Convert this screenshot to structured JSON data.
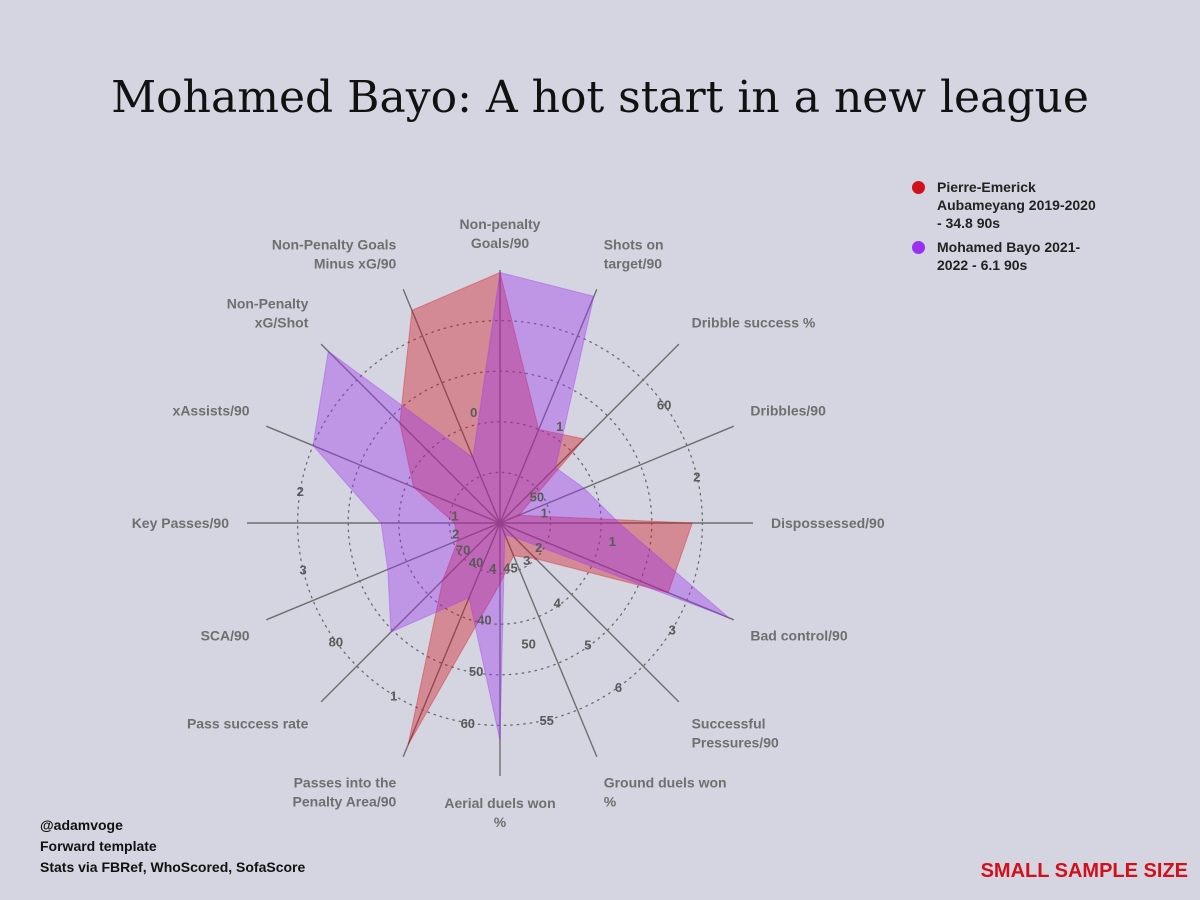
{
  "title": "Mohamed Bayo: A hot start in a new league",
  "legend": [
    {
      "label": "Pierre-Emerick Aubameyang 2019-2020 - 34.8 90s",
      "color": "#d0101a"
    },
    {
      "label": "Mohamed Bayo 2021-2022 - 6.1 90s",
      "color": "#9b30f0"
    }
  ],
  "credits": {
    "line1": "@adamvoge",
    "line2": "Forward template",
    "line3": "Stats via FBRef, WhoScored, SofaScore"
  },
  "warning": "SMALL SAMPLE SIZE",
  "chart_data": {
    "type": "radar",
    "title": "Mohamed Bayo: A hot start in a new league",
    "grid": "dotted circles",
    "legend_position": "top-right",
    "axes": [
      {
        "label": [
          "Non-penalty",
          "Goals/90"
        ],
        "ticks": []
      },
      {
        "label": [
          "Shots on",
          "target/90"
        ],
        "ticks": [
          "1"
        ]
      },
      {
        "label": [
          "Dribble success %"
        ],
        "ticks": [
          "50",
          "60"
        ]
      },
      {
        "label": [
          "Dribbles/90"
        ],
        "ticks": [
          "1",
          "2"
        ]
      },
      {
        "label": [
          "Dispossessed/90"
        ],
        "ticks": [
          "1"
        ]
      },
      {
        "label": [
          "Bad control/90"
        ],
        "ticks": [
          "2",
          "3"
        ]
      },
      {
        "label": [
          "Successful",
          "Pressures/90"
        ],
        "ticks": [
          "3",
          "4",
          "5",
          "6"
        ]
      },
      {
        "label": [
          "Ground duels won",
          "%"
        ],
        "ticks": [
          "45",
          "50",
          "55"
        ]
      },
      {
        "label": [
          "Aerial duels won",
          "%"
        ],
        "ticks": [
          "4",
          "40",
          "50",
          "60"
        ]
      },
      {
        "label": [
          "Passes into the",
          "Penalty Area/90"
        ],
        "ticks": [
          "40",
          "1"
        ]
      },
      {
        "label": [
          "Pass success rate"
        ],
        "ticks": [
          "70",
          "80"
        ]
      },
      {
        "label": [
          "SCA/90"
        ],
        "ticks": [
          "2",
          "3"
        ]
      },
      {
        "label": [
          "Key Passes/90"
        ],
        "ticks": [
          "1",
          "2"
        ]
      },
      {
        "label": [
          "xAssists/90"
        ],
        "ticks": []
      },
      {
        "label": [
          "Non-Penalty",
          "xG/Shot"
        ],
        "ticks": []
      },
      {
        "label": [
          "Non-Penalty Goals",
          "Minus xG/90"
        ],
        "ticks": [
          "0"
        ]
      }
    ],
    "scale_max": 1.0,
    "series": [
      {
        "name": "Pierre-Emerick Aubameyang 2019-2020 - 34.8 90s",
        "color": "#d0101a",
        "values": [
          0.99,
          0.4,
          0.47,
          0.08,
          0.76,
          0.72,
          0.2,
          0.14,
          0.24,
          0.95,
          0.32,
          0.18,
          0.18,
          0.37,
          0.56,
          0.91
        ]
      },
      {
        "name": "Mohamed Bayo 2021-2022 - 6.1 90s",
        "color": "#9b30f0",
        "values": [
          0.99,
          0.97,
          0.31,
          0.36,
          0.47,
          0.98,
          0.08,
          0.05,
          0.86,
          0.32,
          0.61,
          0.48,
          0.47,
          0.8,
          0.96,
          0.28
        ]
      }
    ]
  }
}
